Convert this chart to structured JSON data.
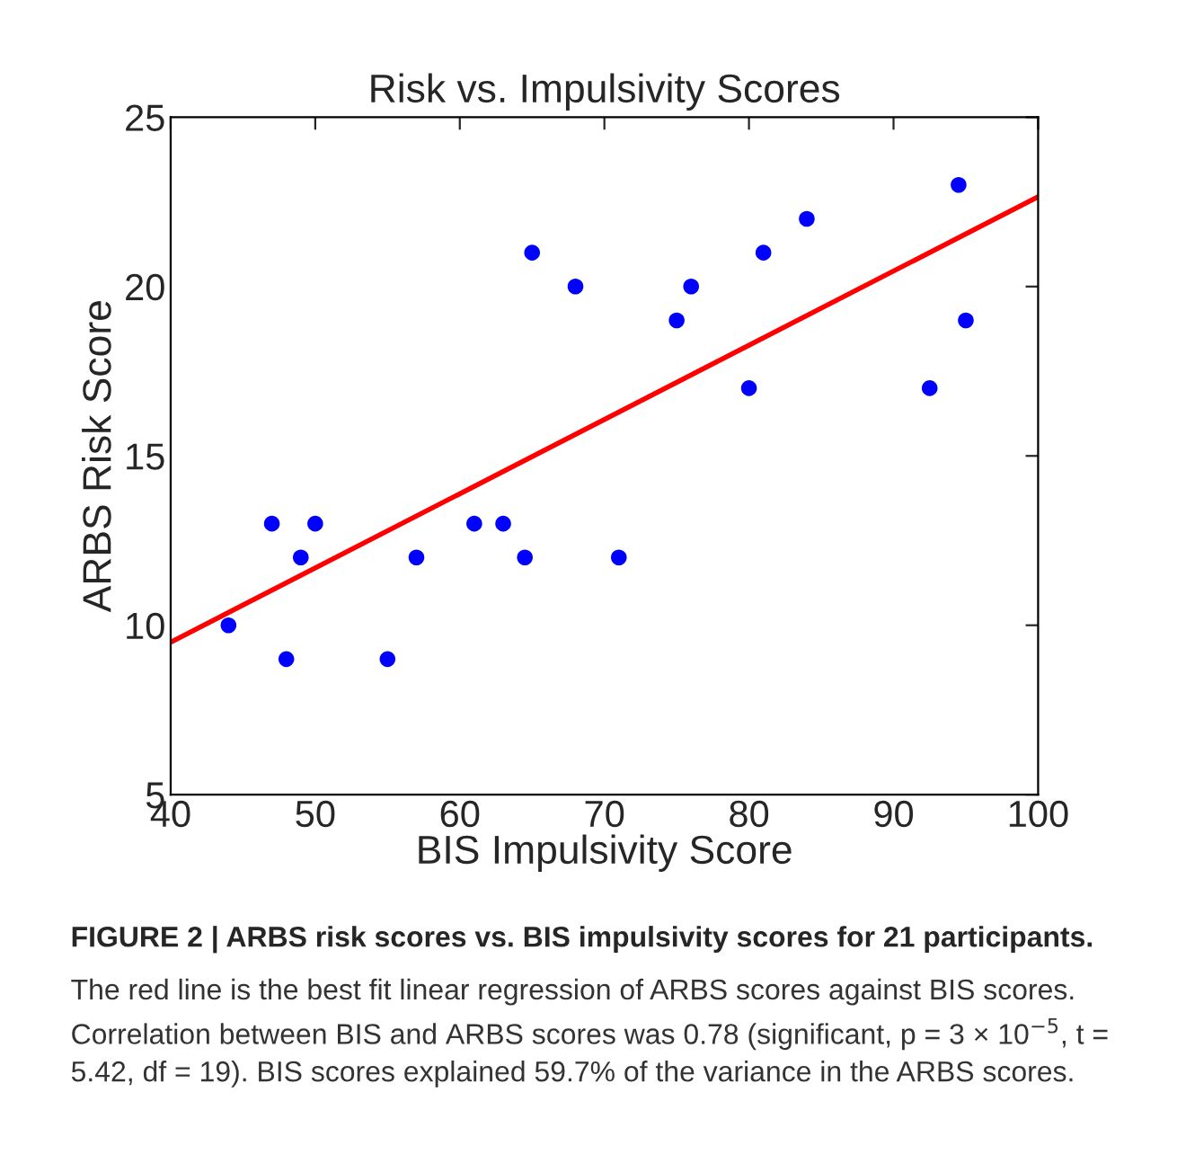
{
  "chart_data": {
    "type": "scatter",
    "title": "Risk vs. Impulsivity Scores",
    "xlabel": "BIS Impulsivity Score",
    "ylabel": "ARBS Risk Score",
    "x": [
      44,
      47,
      48,
      49,
      50,
      55,
      57,
      61,
      63,
      64.5,
      65,
      68,
      71,
      75,
      76,
      80,
      81,
      84,
      92.5,
      94.5,
      95
    ],
    "series": [
      {
        "color": "#0000ff",
        "values": [
          10,
          13,
          9,
          12,
          13,
          9,
          12,
          13,
          13,
          12,
          21,
          20,
          12,
          19,
          20,
          17,
          21,
          22,
          17,
          23,
          19
        ]
      },
      {
        "type": "line",
        "color": "#ff0000",
        "x": [
          40,
          100
        ],
        "values": [
          9.5,
          22.65
        ]
      }
    ],
    "xlim": [
      40,
      100
    ],
    "ylim": [
      5,
      25
    ],
    "xticks": [
      40,
      50,
      60,
      70,
      80,
      90,
      100
    ],
    "yticks": [
      5,
      10,
      15,
      20,
      25
    ],
    "grid": false,
    "legend": false,
    "annotations": [
      "FIGURE 2 | ARBS risk scores vs. BIS impulsivity scores for 21 participants.",
      "The red line is the best fit linear regression of ARBS scores against BIS scores. Correlation between BIS and ARBS scores was 0.78 (significant, p = 3 × 10$^{−5}$, t = 5.42, df = 19). BIS scores explained 59.7% of the variance in the ARBS scores."
    ]
  }
}
